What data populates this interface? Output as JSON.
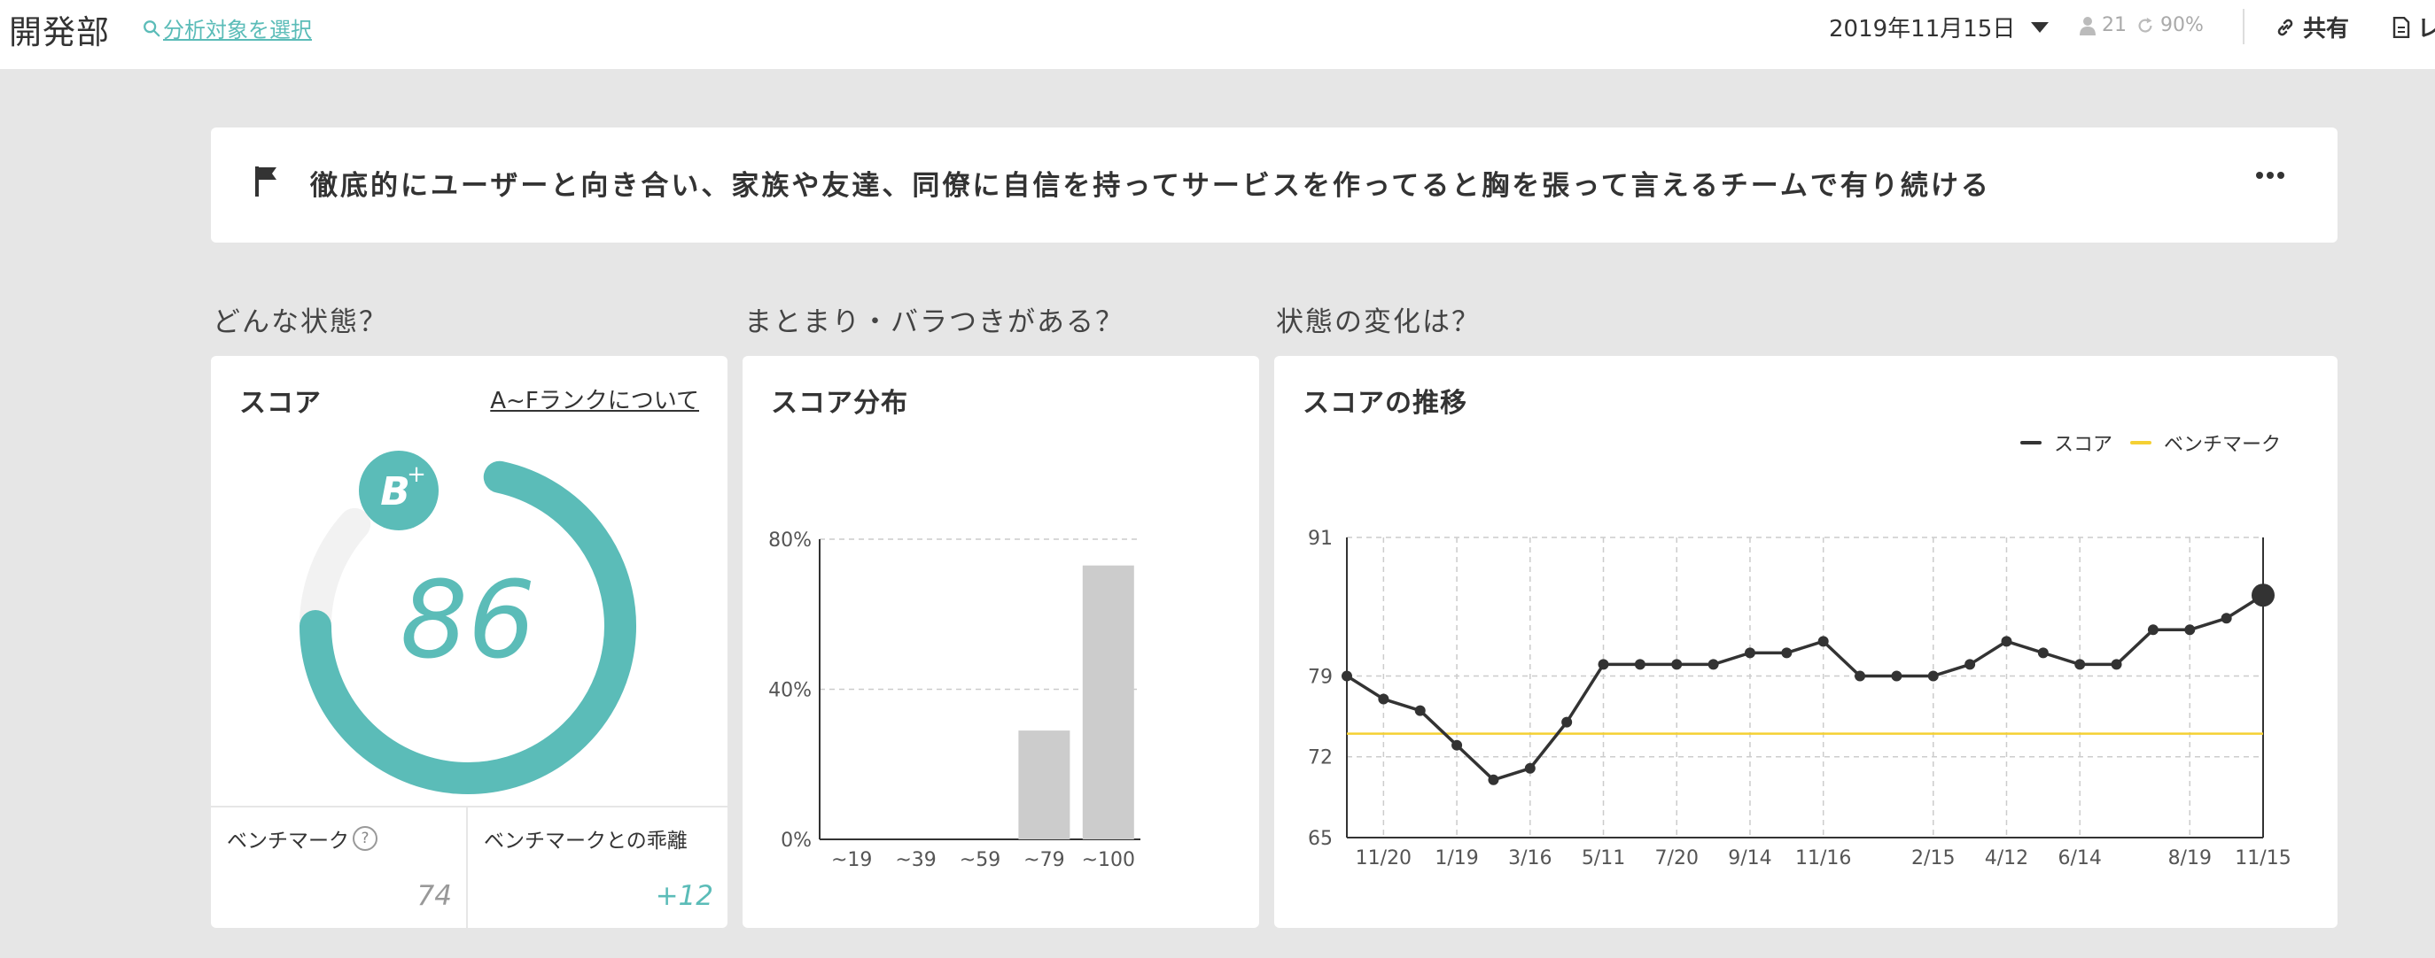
{
  "header": {
    "department": "開発部",
    "select_target_link": "分析対象を選択",
    "date": "2019年11月15日",
    "member_count": "21",
    "response_rate": "90%",
    "share_label": "共有",
    "report_label": "レ"
  },
  "vision": {
    "text": "徹底的にユーザーと向き合い、家族や友達、同僚に自信を持ってサービスを作ってると胸を張って言えるチームで有り続ける"
  },
  "sections": {
    "state": "どんな状態？",
    "spread": "まとまり・バラつきがある？",
    "change": "状態の変化は？"
  },
  "score_card": {
    "title": "スコア",
    "rank_link": "A~Fランクについて",
    "rank": "B",
    "rank_modifier": "+",
    "score": "86",
    "score_fraction": 0.86,
    "benchmark_label": "ベンチマーク",
    "benchmark_help": "?",
    "benchmark_value": "74",
    "diff_label": "ベンチマークとの乖離",
    "diff_value": "+12",
    "colors": {
      "accent": "#5bbcb8",
      "track": "#f2f2f2"
    }
  },
  "distribution_card": {
    "title": "スコア分布"
  },
  "trend_card": {
    "title": "スコアの推移",
    "legend_score": "スコア",
    "legend_benchmark": "ベンチマーク"
  },
  "chart_data": [
    {
      "type": "bar",
      "title": "スコア分布",
      "categories": [
        "~19",
        "~39",
        "~59",
        "~79",
        "~100"
      ],
      "values": [
        0,
        0,
        0,
        29,
        73
      ],
      "ylim": [
        0,
        80
      ],
      "yticks": [
        "0%",
        "40%",
        "80%"
      ],
      "ytick_values": [
        0,
        40,
        80
      ],
      "grid": true,
      "colors": {
        "bar": "#cccccc"
      }
    },
    {
      "type": "line",
      "title": "スコアの推移",
      "ylim": [
        65,
        91
      ],
      "yticks": [
        65,
        72,
        79,
        91
      ],
      "xtick_labels": [
        "11/20",
        "1/19",
        "3/16",
        "5/11",
        "7/20",
        "9/14",
        "11/16",
        "2/15",
        "4/12",
        "6/14",
        "8/19",
        "11/15"
      ],
      "series": [
        {
          "name": "スコア",
          "values": [
            79,
            77,
            76,
            73,
            70,
            71,
            75,
            80,
            80,
            80,
            80,
            81,
            81,
            82,
            79,
            79,
            79,
            80,
            82,
            81,
            80,
            80,
            83,
            83,
            84,
            86
          ]
        },
        {
          "name": "ベンチマーク",
          "values": [
            74,
            74
          ]
        }
      ],
      "grid": true,
      "legend": "top-right",
      "colors": {
        "score": "#333333",
        "benchmark": "#f5d033"
      }
    }
  ]
}
